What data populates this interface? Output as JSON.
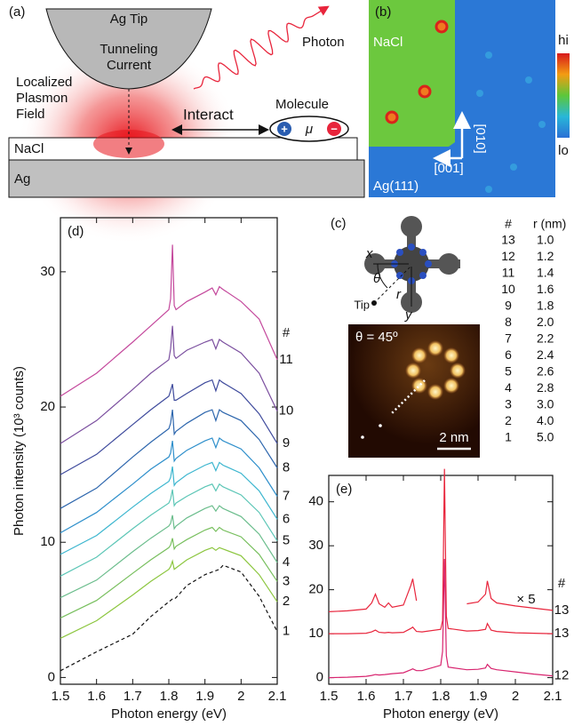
{
  "diagram_a": {
    "panel_label": "(a)",
    "tip": "Ag Tip",
    "current": [
      "Tunneling",
      "Current"
    ],
    "plasmon": [
      "Localized",
      "Plasmon",
      "Field"
    ],
    "photon": "Photon",
    "molecule": "Molecule",
    "interact": "Interact",
    "dipole": "μ",
    "plus": "+",
    "minus": "−",
    "nacl": "NaCl",
    "ag": "Ag"
  },
  "image_b": {
    "panel_label": "(b)",
    "nacl": "NaCl",
    "substrate": "Ag(111)",
    "dir_up": "[010]",
    "dir_left": "[001]",
    "hi": "hi",
    "lo": "lo"
  },
  "molecule_c": {
    "panel_label": "(c)",
    "x": "x",
    "y": "y",
    "theta": "θ",
    "r": "r",
    "tip": "Tip",
    "angle": "θ = 45º",
    "scale": "2 nm"
  },
  "table_c": {
    "header": [
      "#",
      "r (nm)"
    ],
    "rows": [
      [
        "13",
        "1.0"
      ],
      [
        "12",
        "1.2"
      ],
      [
        "11",
        "1.4"
      ],
      [
        "10",
        "1.6"
      ],
      [
        "9",
        "1.8"
      ],
      [
        "8",
        "2.0"
      ],
      [
        "7",
        "2.2"
      ],
      [
        "6",
        "2.4"
      ],
      [
        "5",
        "2.6"
      ],
      [
        "4",
        "2.8"
      ],
      [
        "3",
        "3.0"
      ],
      [
        "2",
        "4.0"
      ],
      [
        "1",
        "5.0"
      ]
    ]
  },
  "chart_data": [
    {
      "type": "line",
      "panel_label": "(d)",
      "xlabel": "Photon energy (eV)",
      "ylabel": "Photon intensity (10³ counts)",
      "legend_title": "#",
      "xlim": [
        1.5,
        2.1
      ],
      "ylim": [
        -0.5,
        34
      ],
      "xticks": [
        1.5,
        1.6,
        1.7,
        1.8,
        1.9,
        2.0,
        2.1
      ],
      "yticks": [
        0,
        10,
        20,
        30
      ],
      "x": [
        1.5,
        1.6,
        1.7,
        1.75,
        1.8,
        1.805,
        1.81,
        1.815,
        1.82,
        1.85,
        1.9,
        1.92,
        1.93,
        1.94,
        1.95,
        2.0,
        2.05,
        2.1
      ],
      "series": [
        {
          "name": "11",
          "color": "#c4489c",
          "values": [
            20.8,
            22.5,
            24.8,
            26,
            27.2,
            28,
            32,
            27.5,
            27.2,
            27.8,
            28.5,
            28.8,
            28.3,
            28.9,
            28.7,
            27.8,
            26.5,
            23.5
          ]
        },
        {
          "name": "10",
          "color": "#7b4f9f",
          "values": [
            17.3,
            19,
            21.3,
            22.5,
            23.5,
            24.3,
            26,
            23.8,
            23.6,
            24.2,
            24.8,
            25,
            24.3,
            25,
            24.8,
            24,
            22.5,
            19.7
          ]
        },
        {
          "name": "9",
          "color": "#3e4a9c",
          "values": [
            15,
            16.5,
            18.7,
            19.8,
            20.8,
            21.2,
            21.7,
            20.5,
            20.5,
            21,
            21.8,
            22,
            21.2,
            22,
            21.8,
            21,
            19.5,
            17.3
          ]
        },
        {
          "name": "8",
          "color": "#2d66ad",
          "values": [
            12.5,
            14,
            16.3,
            17.4,
            18.4,
            18.8,
            19.8,
            18,
            18.2,
            18.8,
            19.6,
            19.8,
            19,
            19.8,
            19.6,
            19,
            17.6,
            15.5
          ]
        },
        {
          "name": "7",
          "color": "#2e8fcb",
          "values": [
            10.7,
            12.2,
            14.3,
            15.4,
            16.3,
            16.6,
            17.5,
            16,
            16.2,
            16.8,
            17.5,
            17.7,
            17,
            17.7,
            17.5,
            16.9,
            15.5,
            13.4
          ]
        },
        {
          "name": "6",
          "color": "#3db6cf",
          "values": [
            9.1,
            10.5,
            12.6,
            13.6,
            14.5,
            14.8,
            15.6,
            14.2,
            14.4,
            15,
            15.7,
            15.9,
            15.3,
            15.9,
            15.7,
            15.1,
            13.8,
            11.7
          ]
        },
        {
          "name": "5",
          "color": "#5cc6b6",
          "values": [
            7.5,
            8.9,
            11,
            12,
            12.9,
            13.2,
            13.9,
            12.7,
            12.9,
            13.4,
            14.1,
            14.3,
            13.8,
            14.3,
            14.1,
            13.5,
            12.2,
            10.1
          ]
        },
        {
          "name": "4",
          "color": "#6bbd8c",
          "values": [
            5.9,
            7.2,
            9.3,
            10.3,
            11.2,
            11.4,
            12,
            11,
            11.2,
            11.8,
            12.5,
            12.7,
            12.3,
            12.7,
            12.5,
            11.9,
            10.6,
            8.5
          ]
        },
        {
          "name": "3",
          "color": "#78bf5e",
          "values": [
            4.4,
            5.7,
            7.7,
            8.7,
            9.6,
            9.8,
            10.3,
            9.5,
            9.7,
            10.2,
            10.9,
            11.1,
            10.8,
            11.1,
            10.9,
            10.4,
            9.1,
            7.1
          ]
        },
        {
          "name": "2",
          "color": "#8cc63f",
          "values": [
            2.9,
            4.2,
            6.1,
            7.1,
            8,
            8.2,
            8.6,
            8,
            8.1,
            8.7,
            9.4,
            9.6,
            9.4,
            9.6,
            9.5,
            9,
            7.6,
            5.6
          ]
        },
        {
          "name": "1",
          "color": "#111111",
          "line_style": "dashed",
          "values": [
            0.5,
            1.9,
            3.2,
            4.5,
            5.6,
            5.7,
            5.8,
            5.8,
            5.9,
            6.8,
            7.6,
            7.8,
            7.9,
            8,
            8.3,
            7.8,
            6,
            3.4
          ]
        }
      ]
    },
    {
      "type": "line",
      "panel_label": "(e)",
      "xlabel": "Photon energy (eV)",
      "legend_title": "#",
      "annotation": "× 5",
      "xlim": [
        1.5,
        2.1
      ],
      "ylim": [
        -1.5,
        46
      ],
      "xticks": [
        1.5,
        1.6,
        1.7,
        1.8,
        1.9,
        2.0,
        2.1
      ],
      "yticks": [
        0,
        10,
        20,
        30,
        40
      ],
      "x": [
        1.5,
        1.55,
        1.6,
        1.615,
        1.625,
        1.635,
        1.65,
        1.66,
        1.67,
        1.7,
        1.72,
        1.725,
        1.735,
        1.75,
        1.8,
        1.805,
        1.81,
        1.815,
        1.82,
        1.87,
        1.9,
        1.92,
        1.925,
        1.935,
        1.95,
        2.0,
        2.05,
        2.1
      ],
      "series": [
        {
          "name": "13",
          "color": "#e8253c",
          "values": [
            15,
            15.2,
            15.6,
            17,
            19,
            16.8,
            16,
            17,
            16,
            16.5,
            21,
            22.5,
            17.5,
            null,
            null,
            null,
            null,
            null,
            null,
            16.8,
            17.2,
            19,
            22,
            18,
            17,
            16.3,
            15.8,
            15.3
          ]
        },
        {
          "name": "13",
          "color": "#e8253c",
          "values": [
            10,
            10,
            10.1,
            10.4,
            10.8,
            10.3,
            10.2,
            10.3,
            10.2,
            10.3,
            11.2,
            11.5,
            10.5,
            10.4,
            11,
            13,
            47.5,
            14,
            11.2,
            10.6,
            10.7,
            11,
            12.3,
            10.8,
            10.5,
            10.2,
            10.1,
            10
          ]
        },
        {
          "name": "12",
          "color": "#d8246f",
          "values": [
            0,
            0.1,
            0.3,
            0.5,
            0.7,
            0.6,
            0.7,
            0.8,
            0.9,
            1.1,
            1.8,
            2,
            1.6,
            1.6,
            2.8,
            6,
            27,
            5,
            2.4,
            1.8,
            1.9,
            2.2,
            3,
            2.1,
            1.8,
            1.3,
            0.8,
            0.4
          ]
        }
      ]
    }
  ]
}
